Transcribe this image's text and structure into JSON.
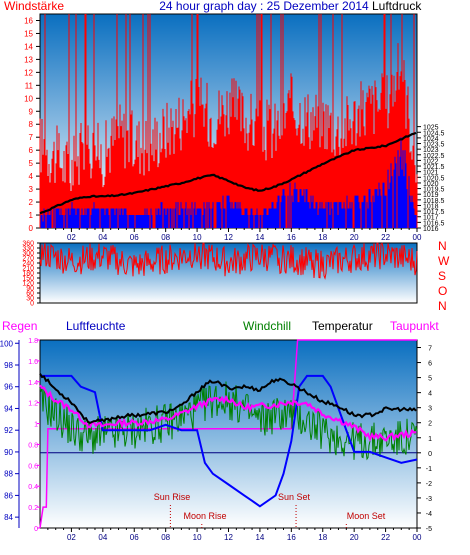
{
  "title": "24 hour graph day : 25 Dezember 2014",
  "colors": {
    "bg": "#ffffff",
    "plot_top": "#0a6fc0",
    "plot_bottom": "#ffffff",
    "frame": "#000000",
    "wind": "#ff0000",
    "gust": "#0000ff",
    "pressure": "#000000",
    "humidity": "#0000ff",
    "windchill": "#008000",
    "temperature": "#000000",
    "dewpoint": "#ff00ff",
    "rain": "#ff00ff",
    "freezing_line": "#000080",
    "astro": "#c00000",
    "label_blue": "#0000c0",
    "label_red": "#ff0000",
    "label_green": "#008000",
    "label_magenta": "#ff00ff"
  },
  "chart_data": [
    {
      "type": "bar",
      "name": "wind-and-pressure",
      "left_label": "Windstärke",
      "right_label": "Luftdruck",
      "x_ticks": [
        "02",
        "04",
        "06",
        "08",
        "10",
        "12",
        "14",
        "16",
        "18",
        "20",
        "22",
        "00"
      ],
      "x_range_hours": [
        0,
        24
      ],
      "left_axis": {
        "min": 0,
        "max": 16.5,
        "ticks": [
          "0",
          "1",
          "2",
          "3",
          "4",
          "5",
          "6",
          "7",
          "8",
          "9",
          "10",
          "11",
          "12",
          "13",
          "14",
          "15",
          "16"
        ]
      },
      "right_axis": {
        "min": 1016,
        "max": 1035,
        "ticks": [
          "1016",
          "1016.5",
          "1017",
          "1017.5",
          "1018",
          "1018.5",
          "1019",
          "1019.5",
          "1020",
          "1020.5",
          "1021",
          "1021.5",
          "1022",
          "1022.5",
          "1023",
          "1023.5",
          "1024",
          "1024.5",
          "1025"
        ]
      },
      "series": [
        {
          "name": "wind",
          "x": [
            0,
            1,
            2,
            3,
            4,
            5,
            6,
            7,
            8,
            9,
            10,
            11,
            12,
            13,
            14,
            15,
            16,
            17,
            18,
            19,
            20,
            21,
            22,
            23,
            24
          ],
          "values": [
            6,
            5,
            4,
            6,
            5,
            7,
            6,
            6,
            7,
            8,
            9,
            8,
            9,
            8,
            7,
            7,
            9,
            8,
            8,
            7,
            8,
            9,
            9,
            12,
            4
          ]
        },
        {
          "name": "gust",
          "x": [
            0,
            2,
            4,
            6,
            8,
            10,
            12,
            14,
            16,
            18,
            20,
            22,
            23,
            24
          ],
          "values": [
            1,
            1.5,
            1.5,
            1,
            1.5,
            1.5,
            2,
            1,
            3,
            1.5,
            2,
            3,
            6,
            0.5
          ]
        },
        {
          "name": "pressure",
          "x": [
            0,
            1,
            2,
            3,
            4,
            5,
            6,
            7,
            8,
            9,
            10,
            11,
            12,
            13,
            14,
            15,
            16,
            17,
            18,
            19,
            20,
            21,
            22,
            23,
            24
          ],
          "values": [
            1017.3,
            1017.9,
            1018.5,
            1018.8,
            1018.8,
            1018.9,
            1019.1,
            1019.4,
            1019.7,
            1020.0,
            1020.4,
            1020.7,
            1020.2,
            1019.6,
            1019.3,
            1019.7,
            1020.3,
            1021.0,
            1021.7,
            1022.3,
            1022.9,
            1023.1,
            1023.3,
            1023.9,
            1024.5
          ]
        }
      ]
    },
    {
      "type": "line",
      "name": "wind-direction",
      "right_labels": [
        "N",
        "W",
        "S",
        "O",
        "N"
      ],
      "left_axis": {
        "min": 0,
        "max": 360,
        "ticks": [
          "0",
          "30",
          "60",
          "90",
          "120",
          "150",
          "180",
          "210",
          "240",
          "270",
          "300",
          "330",
          "360"
        ]
      },
      "series": [
        {
          "name": "direction",
          "x": [
            0,
            2,
            4,
            6,
            8,
            10,
            12,
            14,
            16,
            18,
            20,
            22,
            24
          ],
          "values": [
            300,
            250,
            280,
            220,
            260,
            300,
            240,
            280,
            260,
            230,
            270,
            290,
            250
          ]
        }
      ]
    },
    {
      "type": "line",
      "name": "temperature-humidity",
      "header_labels": {
        "rain": "Regen",
        "humidity": "Luftfeuchte",
        "windchill": "Windchill",
        "temperature": "Temperatur",
        "dewpoint": "Taupunkt"
      },
      "x_ticks": [
        "02",
        "04",
        "06",
        "08",
        "10",
        "12",
        "14",
        "16",
        "18",
        "20",
        "22",
        "00"
      ],
      "humidity_axis": {
        "min": 83,
        "max": 100.3,
        "ticks": [
          "84",
          "86",
          "88",
          "90",
          "92",
          "94",
          "96",
          "98",
          "100"
        ]
      },
      "rain_axis": {
        "min": 0,
        "max": 1.8,
        "ticks": [
          "0",
          "0.2",
          "0.4",
          "0.6",
          "0.8",
          "1",
          "1.2",
          "1.4",
          "1.6",
          "1.8"
        ]
      },
      "temp_axis": {
        "min": -5,
        "max": 7.5,
        "ticks": [
          "-5",
          "-4",
          "-3",
          "-2",
          "-1",
          "0",
          "1",
          "2",
          "3",
          "4",
          "5",
          "6",
          "7"
        ]
      },
      "astro_labels": {
        "sun_rise": "Sun Rise",
        "sun_set": "Sun Set",
        "moon_rise": "Moon Rise",
        "moon_set": "Moon Set"
      },
      "astro_times": {
        "sun_rise": 8.3,
        "sun_set": 16.3,
        "moon_rise": 10.3,
        "moon_set": 19.5
      },
      "series": [
        {
          "name": "temperature",
          "x": [
            0,
            1,
            2,
            3,
            4,
            5,
            6,
            7,
            8,
            9,
            10,
            11,
            12,
            13,
            14,
            15,
            16,
            17,
            18,
            19,
            20,
            21,
            22,
            23,
            24
          ],
          "values": [
            5.3,
            4.2,
            3.4,
            2.1,
            2.1,
            2.4,
            2.5,
            2.6,
            2.7,
            3.1,
            4.1,
            4.8,
            4.3,
            4.4,
            4.2,
            4.9,
            4.6,
            4.0,
            3.4,
            3.1,
            2.5,
            2.5,
            2.9,
            2.9,
            2.8
          ]
        },
        {
          "name": "windchill",
          "x": [
            0,
            1,
            2,
            3,
            4,
            5,
            6,
            7,
            8,
            9,
            10,
            11,
            12,
            13,
            14,
            15,
            16,
            17,
            18,
            19,
            20,
            21,
            22,
            23,
            24
          ],
          "values": [
            3.4,
            2.6,
            1.6,
            1.0,
            1.2,
            1.3,
            1.5,
            1.8,
            2.0,
            2.4,
            2.9,
            3.6,
            3.5,
            2.9,
            2.1,
            2.6,
            2.6,
            2.1,
            1.4,
            1.0,
            0.8,
            0.7,
            0.9,
            0.9,
            1.1
          ]
        },
        {
          "name": "dewpoint",
          "x": [
            0,
            1,
            2,
            3,
            4,
            5,
            6,
            7,
            8,
            9,
            10,
            11,
            12,
            13,
            14,
            15,
            16,
            17,
            18,
            19,
            20,
            21,
            22,
            23,
            24
          ],
          "values": [
            4.4,
            3.5,
            2.9,
            1.9,
            1.8,
            2.0,
            2.0,
            2.1,
            2.2,
            2.6,
            3.1,
            3.5,
            3.6,
            3.0,
            3.1,
            3.2,
            3.4,
            3.3,
            2.6,
            2.2,
            1.7,
            1.1,
            1.0,
            1.2,
            1.3
          ]
        },
        {
          "name": "humidity",
          "x": [
            0,
            1,
            2,
            2.6,
            3.5,
            4,
            5,
            6,
            7,
            8,
            9,
            10,
            10.5,
            11,
            12,
            13,
            13.5,
            14,
            15,
            15.5,
            16,
            16.5,
            17,
            18,
            18.5,
            19,
            19.5,
            20,
            21,
            22,
            23,
            24
          ],
          "values": [
            97,
            97,
            97,
            96,
            95.5,
            92,
            92,
            92,
            92,
            92.5,
            92,
            92,
            89,
            88,
            87,
            86,
            85.5,
            85,
            86,
            88,
            91,
            96,
            97,
            97,
            96,
            94,
            92,
            90,
            90,
            89.5,
            89,
            89.3
          ]
        },
        {
          "name": "rain",
          "x": [
            0,
            0.2,
            0.4,
            0.5,
            1,
            16,
            16.4,
            24
          ],
          "values": [
            0,
            0.2,
            0.2,
            0.95,
            0.95,
            0.95,
            1.8,
            1.8
          ]
        }
      ]
    }
  ]
}
